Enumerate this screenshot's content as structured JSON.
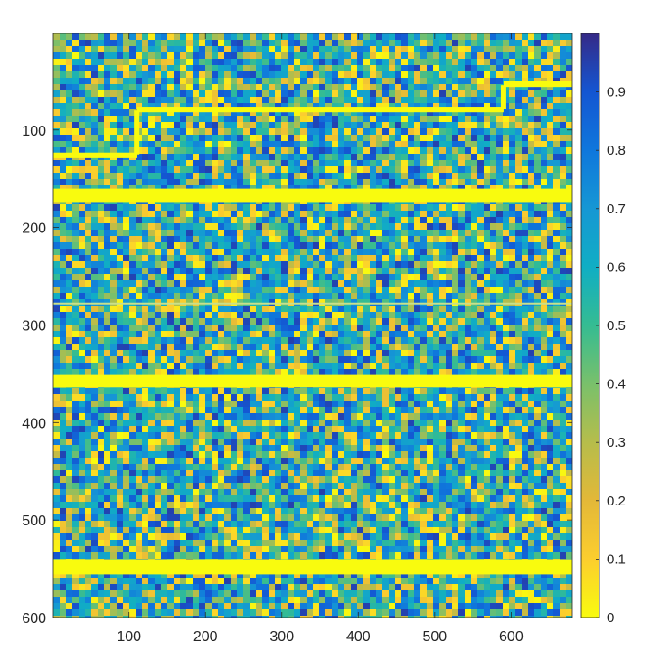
{
  "chart_data": {
    "type": "heatmap",
    "title": "",
    "xlabel": "",
    "ylabel": "",
    "xlim": [
      1,
      680
    ],
    "ylim": [
      1,
      600
    ],
    "y_reversed": true,
    "x_ticks": [
      100,
      200,
      300,
      400,
      500,
      600
    ],
    "y_ticks": [
      100,
      200,
      300,
      400,
      500,
      600
    ],
    "colorbar": {
      "colormap": "parula-reversed",
      "range": [
        0,
        1
      ],
      "ticks": [
        0,
        0.1,
        0.2,
        0.3,
        0.4,
        0.5,
        0.6,
        0.7,
        0.8,
        0.9
      ],
      "low_color": "#f9fb0e",
      "mid_color": "#1fb7a6",
      "high_color": "#352a87"
    },
    "background": "speckled noise with values spread across 0 to 1",
    "value_near_zero_bands": [
      {
        "y_start": 125,
        "y_end": 127,
        "x_start": 1,
        "x_end": 110
      },
      {
        "y_start": 78,
        "y_end": 80,
        "x_start": 110,
        "x_end": 590
      },
      {
        "y_start": 52,
        "y_end": 54,
        "x_start": 590,
        "x_end": 680
      },
      {
        "y_start": 162,
        "y_end": 172,
        "x_start": 1,
        "x_end": 680
      },
      {
        "y_start": 353,
        "y_end": 362,
        "x_start": 1,
        "x_end": 680
      },
      {
        "y_start": 542,
        "y_end": 554,
        "x_start": 1,
        "x_end": 680
      }
    ],
    "thin_line_y": 278
  }
}
